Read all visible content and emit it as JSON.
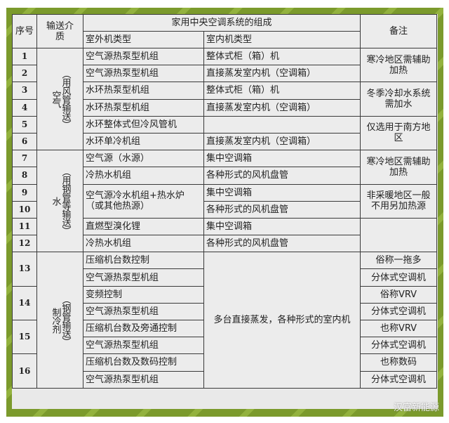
{
  "header": {
    "seq": "序号",
    "medium": "输送介质",
    "composition": "家用中央空调系统的组成",
    "outdoor": "室外机类型",
    "indoor": "室内机类型",
    "remark": "备注"
  },
  "groups": {
    "air": {
      "main": "空气",
      "sub": "（用风管输送）"
    },
    "water": {
      "main": "水",
      "sub": "（用钢管等输送）"
    },
    "refrigerant": {
      "main": "制冷剂",
      "sub": "（钢管输送）"
    }
  },
  "rows": [
    {
      "seq": "1",
      "outdoor": "空气源热泵型机组",
      "indoor": "整体式柜（箱）机"
    },
    {
      "seq": "2",
      "outdoor": "空气源热泵型机组",
      "indoor": "直接蒸发室内机（空调箱）"
    },
    {
      "seq": "3",
      "outdoor": "水环热泵型机组",
      "indoor": "整体式柜（箱）机"
    },
    {
      "seq": "4",
      "outdoor": "水环热泵型机组",
      "indoor": "直接蒸发室内机（空调箱）"
    },
    {
      "seq": "5",
      "outdoor": "水环整体式但冷风管机",
      "indoor": ""
    },
    {
      "seq": "6",
      "outdoor": "水环单冷机组",
      "indoor": "直接蒸发室内机（空调箱）"
    },
    {
      "seq": "7",
      "outdoor": "空气源（水源）",
      "indoor": "集中空调箱"
    },
    {
      "seq": "8",
      "outdoor": "冷热水机组",
      "indoor": "各种形式的风机盘管"
    },
    {
      "seq": "9",
      "outdoor": "空气源冷水机组+热水炉（或其他热源）",
      "indoor": "集中空调箱"
    },
    {
      "seq": "10",
      "outdoor": "",
      "indoor": "各种形式的风机盘管"
    },
    {
      "seq": "11",
      "outdoor": "直燃型溴化锂",
      "indoor": "集中空调箱"
    },
    {
      "seq": "12",
      "outdoor": "冷热水机组",
      "indoor": "各种形式的风机盘管"
    }
  ],
  "remarks": {
    "r12": "寒冷地区需辅助加热",
    "r34": "冬季冷却水系统需加水",
    "r56": "仅选用于南方地区",
    "r78": "寒冷地区需辅助加热",
    "r910": "非采暖地区一般不用另加热源"
  },
  "refrig": {
    "indoor": "多台直接蒸发，各种形式的室内机",
    "rows": [
      {
        "seq": "13",
        "outdoor": "压缩机台数控制",
        "remark": "俗称一拖多"
      },
      {
        "outdoor": "空气源热泵型机组",
        "remark": "分体式空调机"
      },
      {
        "seq": "14",
        "outdoor": "变频控制",
        "remark": "俗称VRV"
      },
      {
        "outdoor": "空气源热泵型机组",
        "remark": "分体式空调机"
      },
      {
        "seq": "15",
        "outdoor": "压缩机台数及旁通控制",
        "remark": "也称VRV"
      },
      {
        "outdoor": "空气源热泵型机组",
        "remark": "分体式空调机"
      },
      {
        "seq": "16",
        "outdoor": "压缩机台数及数码控制",
        "remark": "也称数码"
      },
      {
        "outdoor": "空气源热泵型机组",
        "remark": "分体式空调机"
      }
    ]
  },
  "watermark": "汉富新能源",
  "colors": {
    "frame": "#7b9a2c",
    "cell": "#ececec",
    "border": "#3a3a3a"
  }
}
